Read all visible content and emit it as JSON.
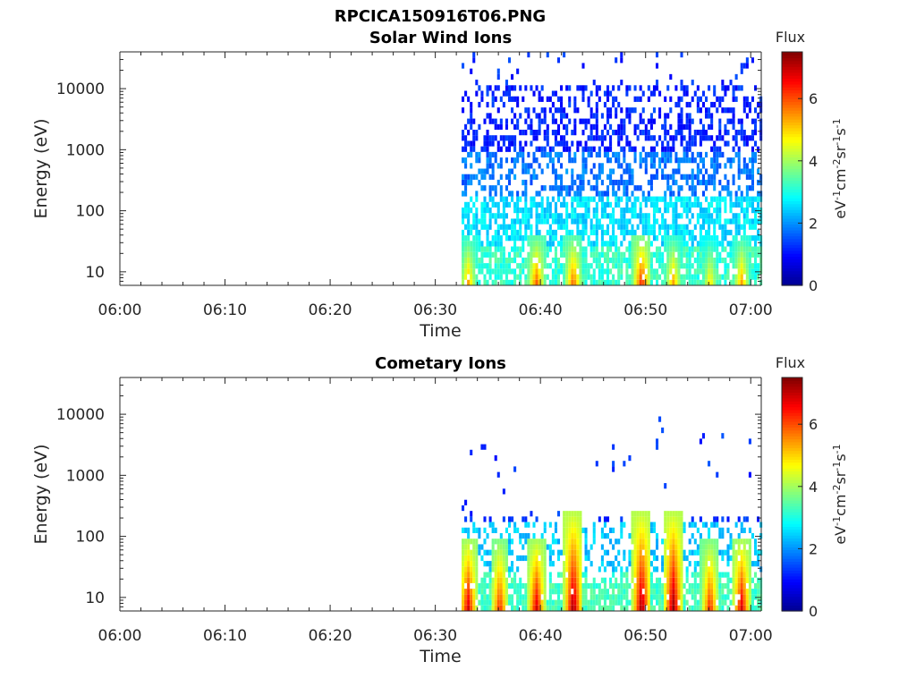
{
  "figure_title": "RPCICA150916T06.PNG",
  "colormap": [
    "#00008f",
    "#0000ff",
    "#0080ff",
    "#00ffff",
    "#80ff80",
    "#ffff00",
    "#ff8000",
    "#ff0000",
    "#800000"
  ],
  "chart_data": [
    {
      "type": "heatmap",
      "title": "Solar Wind Ions",
      "xlabel": "Time",
      "ylabel": "Energy (eV)",
      "x_ticks": [
        "06:00",
        "06:10",
        "06:20",
        "06:30",
        "06:40",
        "06:50",
        "07:00"
      ],
      "y_ticks": [
        "10",
        "100",
        "1000",
        "10000"
      ],
      "y_scale": "log",
      "xlim": [
        "06:00",
        "07:01"
      ],
      "ylim": [
        6,
        40000
      ],
      "data_start": "06:32.5",
      "colorbar": {
        "label": "Flux",
        "units": "eV-1cm-2sr-1s-1",
        "ticks": [
          "0",
          "2",
          "4",
          "6"
        ],
        "range": [
          0,
          7.5
        ]
      },
      "low_energy_bursts": [
        {
          "time": "06:33",
          "flux": 5.5
        },
        {
          "time": "06:39.5",
          "flux": 6.0
        },
        {
          "time": "06:43",
          "flux": 6.0
        },
        {
          "time": "06:49.5",
          "flux": 6.5
        },
        {
          "time": "06:52.5",
          "flux": 5.5
        },
        {
          "time": "06:56",
          "flux": 5.0
        },
        {
          "time": "06:59",
          "flux": 5.5
        }
      ],
      "grid": false
    },
    {
      "type": "heatmap",
      "title": "Cometary Ions",
      "xlabel": "Time",
      "ylabel": "Energy (eV)",
      "x_ticks": [
        "06:00",
        "06:10",
        "06:20",
        "06:30",
        "06:40",
        "06:50",
        "07:00"
      ],
      "y_ticks": [
        "10",
        "100",
        "1000",
        "10000"
      ],
      "y_scale": "log",
      "xlim": [
        "06:00",
        "07:01"
      ],
      "ylim": [
        6,
        40000
      ],
      "data_start": "06:32.5",
      "colorbar": {
        "label": "Flux",
        "units": "eV-1cm-2sr-1s-1",
        "ticks": [
          "0",
          "2",
          "4",
          "6"
        ],
        "range": [
          0,
          7.5
        ]
      },
      "low_energy_bursts": [
        {
          "time": "06:33",
          "flux": 7.0
        },
        {
          "time": "06:36",
          "flux": 6.5
        },
        {
          "time": "06:39.5",
          "flux": 7.0
        },
        {
          "time": "06:43",
          "flux": 7.5
        },
        {
          "time": "06:49.5",
          "flux": 7.5
        },
        {
          "time": "06:52.5",
          "flux": 7.5
        },
        {
          "time": "06:56",
          "flux": 6.5
        },
        {
          "time": "06:59",
          "flux": 7.0
        }
      ],
      "grid": false
    }
  ]
}
